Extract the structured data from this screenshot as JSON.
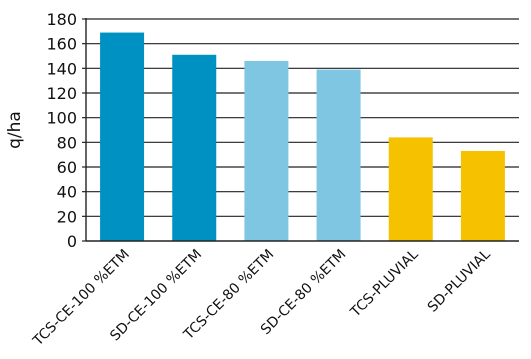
{
  "chart_data": {
    "type": "bar",
    "title": "",
    "xlabel": "",
    "ylabel": "q/ha",
    "ylim": [
      0,
      180
    ],
    "yticks": [
      0,
      20,
      40,
      60,
      80,
      100,
      120,
      140,
      160,
      180
    ],
    "grid": true,
    "categories": [
      "TCS-CE-100 %ETM",
      "SD-CE-100 %ETM",
      "TCS-CE-80 %ETM",
      "SD-CE-80 %ETM",
      "TCS-PLUVIAL",
      "SD-PLUVIAL"
    ],
    "values": [
      169,
      151,
      146,
      139,
      84,
      73
    ],
    "bar_colors": [
      "#0091C3",
      "#0091C3",
      "#7FC6E3",
      "#7FC6E3",
      "#F6C200",
      "#F6C200"
    ]
  }
}
